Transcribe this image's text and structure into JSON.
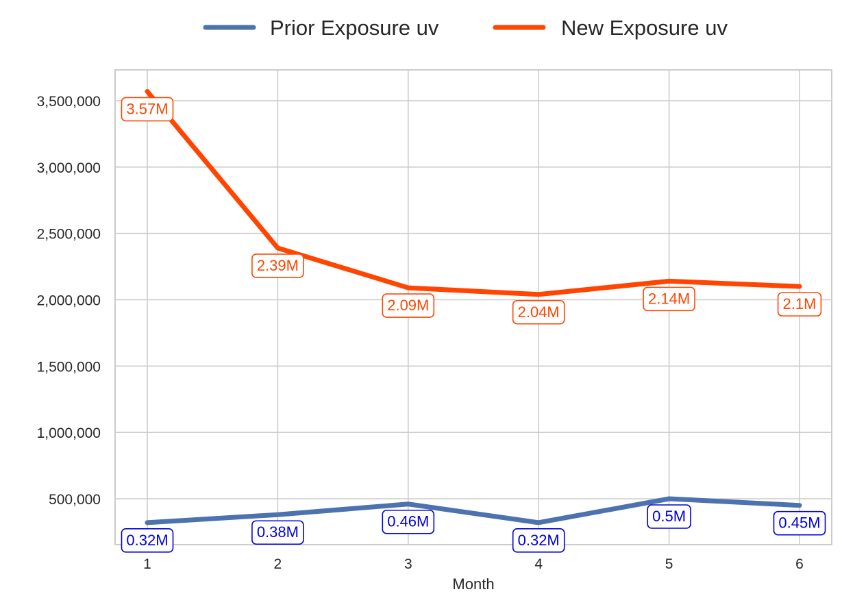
{
  "chart_data": {
    "type": "line",
    "title": "",
    "xlabel": "Month",
    "ylabel": "",
    "x": [
      1,
      2,
      3,
      4,
      5,
      6
    ],
    "x_tick_labels": [
      "1",
      "2",
      "3",
      "4",
      "5",
      "6"
    ],
    "y_ticks": [
      500000,
      1000000,
      1500000,
      2000000,
      2500000,
      3000000,
      3500000
    ],
    "y_tick_labels": [
      "500,000",
      "1,000,000",
      "1,500,000",
      "2,000,000",
      "2,500,000",
      "3,000,000",
      "3,500,000"
    ],
    "ylim": [
      150000,
      3720000
    ],
    "grid": true,
    "legend_position": "top-center",
    "series": [
      {
        "name": "Prior Exposure uv",
        "color": "#4c72b0",
        "label_color": "#0000dd",
        "values": [
          320000,
          380000,
          460000,
          320000,
          500000,
          450000
        ],
        "labels": [
          "0.32M",
          "0.38M",
          "0.46M",
          "0.32M",
          "0.5M",
          "0.45M"
        ]
      },
      {
        "name": "New Exposure uv",
        "color": "#ff4500",
        "label_color": "#ff4500",
        "values": [
          3570000,
          2390000,
          2090000,
          2040000,
          2140000,
          2100000
        ],
        "labels": [
          "3.57M",
          "2.39M",
          "2.09M",
          "2.04M",
          "2.14M",
          "2.1M"
        ]
      }
    ]
  }
}
